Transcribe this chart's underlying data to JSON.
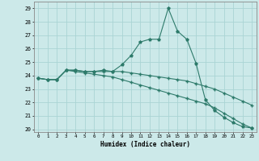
{
  "xlabel": "Humidex (Indice chaleur)",
  "background_color": "#cce9e9",
  "grid_color": "#aad4d4",
  "line_color": "#2d7a6a",
  "xlim": [
    -0.5,
    23.5
  ],
  "ylim": [
    19.8,
    29.5
  ],
  "xticks": [
    0,
    1,
    2,
    3,
    4,
    5,
    6,
    7,
    8,
    9,
    10,
    11,
    12,
    13,
    14,
    15,
    16,
    17,
    18,
    19,
    20,
    21,
    22,
    23
  ],
  "yticks": [
    20,
    21,
    22,
    23,
    24,
    25,
    26,
    27,
    28,
    29
  ],
  "line1_x": [
    0,
    1,
    2,
    3,
    4,
    5,
    6,
    7,
    8,
    9,
    10,
    11,
    12,
    13,
    14,
    15,
    16,
    17,
    18,
    19,
    20,
    21,
    22,
    23
  ],
  "line1_y": [
    23.8,
    23.7,
    23.7,
    24.4,
    24.4,
    24.3,
    24.3,
    24.4,
    24.3,
    24.8,
    25.5,
    26.5,
    26.7,
    26.7,
    29.0,
    27.3,
    26.7,
    24.9,
    22.2,
    21.4,
    20.9,
    20.5,
    20.2,
    20.1
  ],
  "line2_x": [
    0,
    1,
    2,
    3,
    4,
    5,
    6,
    7,
    8,
    9,
    10,
    11,
    12,
    13,
    14,
    15,
    16,
    17,
    18,
    19,
    20,
    21,
    22,
    23
  ],
  "line2_y": [
    23.8,
    23.7,
    23.7,
    24.4,
    24.4,
    24.3,
    24.3,
    24.3,
    24.3,
    24.3,
    24.2,
    24.1,
    24.0,
    23.9,
    23.8,
    23.7,
    23.6,
    23.4,
    23.2,
    23.0,
    22.7,
    22.4,
    22.1,
    21.8
  ],
  "line3_x": [
    0,
    1,
    2,
    3,
    4,
    5,
    6,
    7,
    8,
    9,
    10,
    11,
    12,
    13,
    14,
    15,
    16,
    17,
    18,
    19,
    20,
    21,
    22,
    23
  ],
  "line3_y": [
    23.8,
    23.7,
    23.7,
    24.4,
    24.3,
    24.2,
    24.1,
    24.0,
    23.9,
    23.7,
    23.5,
    23.3,
    23.1,
    22.9,
    22.7,
    22.5,
    22.3,
    22.1,
    21.9,
    21.6,
    21.2,
    20.8,
    20.4,
    20.1
  ]
}
